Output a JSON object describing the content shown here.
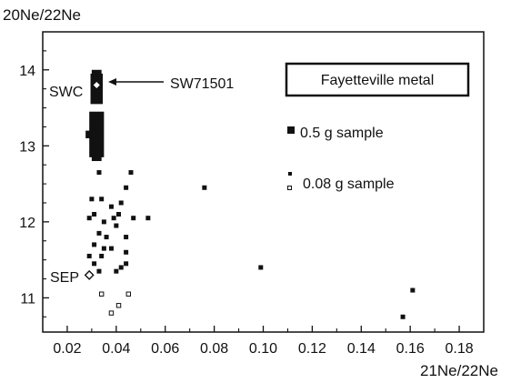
{
  "chart_data": {
    "type": "scatter",
    "title": "",
    "xlabel": "21Ne/22Ne",
    "ylabel": "20Ne/22Ne",
    "xlim": [
      0.01,
      0.19
    ],
    "ylim": [
      10.55,
      14.5
    ],
    "x_ticks": [
      "0.02",
      "0.04",
      "0.06",
      "0.08",
      "0.10",
      "0.12",
      "0.14",
      "0.16",
      "0.18"
    ],
    "y_ticks": [
      "11",
      "12",
      "13",
      "14"
    ],
    "grid": false,
    "legend": {
      "title": "Fayetteville metal",
      "placement": "top-right",
      "entries": [
        "0.5 g sample",
        "0.08 g sample"
      ]
    },
    "series": [
      {
        "name": "0.5 g sample",
        "marker": "filled-square-large",
        "points": [
          {
            "x": 0.032,
            "y": 13.95,
            "dx": 0.002,
            "dy": 0.05
          },
          {
            "x": 0.032,
            "y": 13.75,
            "dx": 0.0025,
            "dy": 0.2
          },
          {
            "x": 0.032,
            "y": 13.15,
            "dx": 0.003,
            "dy": 0.3
          },
          {
            "x": 0.031,
            "y": 13.15,
            "dx": 0.0035,
            "dy": 0.05
          },
          {
            "x": 0.032,
            "y": 12.9,
            "dx": 0.002,
            "dy": 0.1
          }
        ]
      },
      {
        "name": "0.08 g sample",
        "marker": "small-square",
        "points": [
          {
            "x": 0.033,
            "y": 12.65,
            "filled": true
          },
          {
            "x": 0.046,
            "y": 12.65,
            "filled": true
          },
          {
            "x": 0.044,
            "y": 12.45,
            "filled": true
          },
          {
            "x": 0.03,
            "y": 12.3,
            "filled": true
          },
          {
            "x": 0.034,
            "y": 12.3,
            "filled": true
          },
          {
            "x": 0.042,
            "y": 12.25,
            "filled": true
          },
          {
            "x": 0.038,
            "y": 12.2,
            "filled": true
          },
          {
            "x": 0.041,
            "y": 12.1,
            "filled": true
          },
          {
            "x": 0.031,
            "y": 12.1,
            "filled": true
          },
          {
            "x": 0.029,
            "y": 12.05,
            "filled": true
          },
          {
            "x": 0.039,
            "y": 12.05,
            "filled": true
          },
          {
            "x": 0.047,
            "y": 12.05,
            "filled": true
          },
          {
            "x": 0.053,
            "y": 12.05,
            "filled": true
          },
          {
            "x": 0.035,
            "y": 12.0,
            "filled": true
          },
          {
            "x": 0.04,
            "y": 11.95,
            "filled": true
          },
          {
            "x": 0.033,
            "y": 11.85,
            "filled": true
          },
          {
            "x": 0.036,
            "y": 11.8,
            "filled": true
          },
          {
            "x": 0.044,
            "y": 11.8,
            "filled": true
          },
          {
            "x": 0.031,
            "y": 11.7,
            "filled": true
          },
          {
            "x": 0.035,
            "y": 11.65,
            "filled": true
          },
          {
            "x": 0.038,
            "y": 11.65,
            "filled": true
          },
          {
            "x": 0.044,
            "y": 11.6,
            "filled": true
          },
          {
            "x": 0.029,
            "y": 11.55,
            "filled": true
          },
          {
            "x": 0.034,
            "y": 11.55,
            "filled": true
          },
          {
            "x": 0.031,
            "y": 11.45,
            "filled": true
          },
          {
            "x": 0.044,
            "y": 11.45,
            "filled": true
          },
          {
            "x": 0.042,
            "y": 11.4,
            "filled": true
          },
          {
            "x": 0.033,
            "y": 11.35,
            "filled": true
          },
          {
            "x": 0.04,
            "y": 11.35,
            "filled": true
          },
          {
            "x": 0.076,
            "y": 12.45,
            "filled": true
          },
          {
            "x": 0.099,
            "y": 11.4,
            "filled": true
          },
          {
            "x": 0.161,
            "y": 11.1,
            "filled": true
          },
          {
            "x": 0.157,
            "y": 10.75,
            "filled": true
          },
          {
            "x": 0.034,
            "y": 11.05,
            "filled": false
          },
          {
            "x": 0.045,
            "y": 11.05,
            "filled": false
          },
          {
            "x": 0.041,
            "y": 10.9,
            "filled": false
          },
          {
            "x": 0.038,
            "y": 10.8,
            "filled": false
          }
        ]
      }
    ],
    "references": [
      {
        "label": "SWC",
        "x": 0.032,
        "y": 13.8,
        "marker": "white-diamond"
      },
      {
        "label": "SEP",
        "x": 0.029,
        "y": 11.3,
        "marker": "open-diamond"
      }
    ],
    "annotations": [
      {
        "label": "SW71501",
        "arrow_to": "SWC"
      }
    ]
  }
}
